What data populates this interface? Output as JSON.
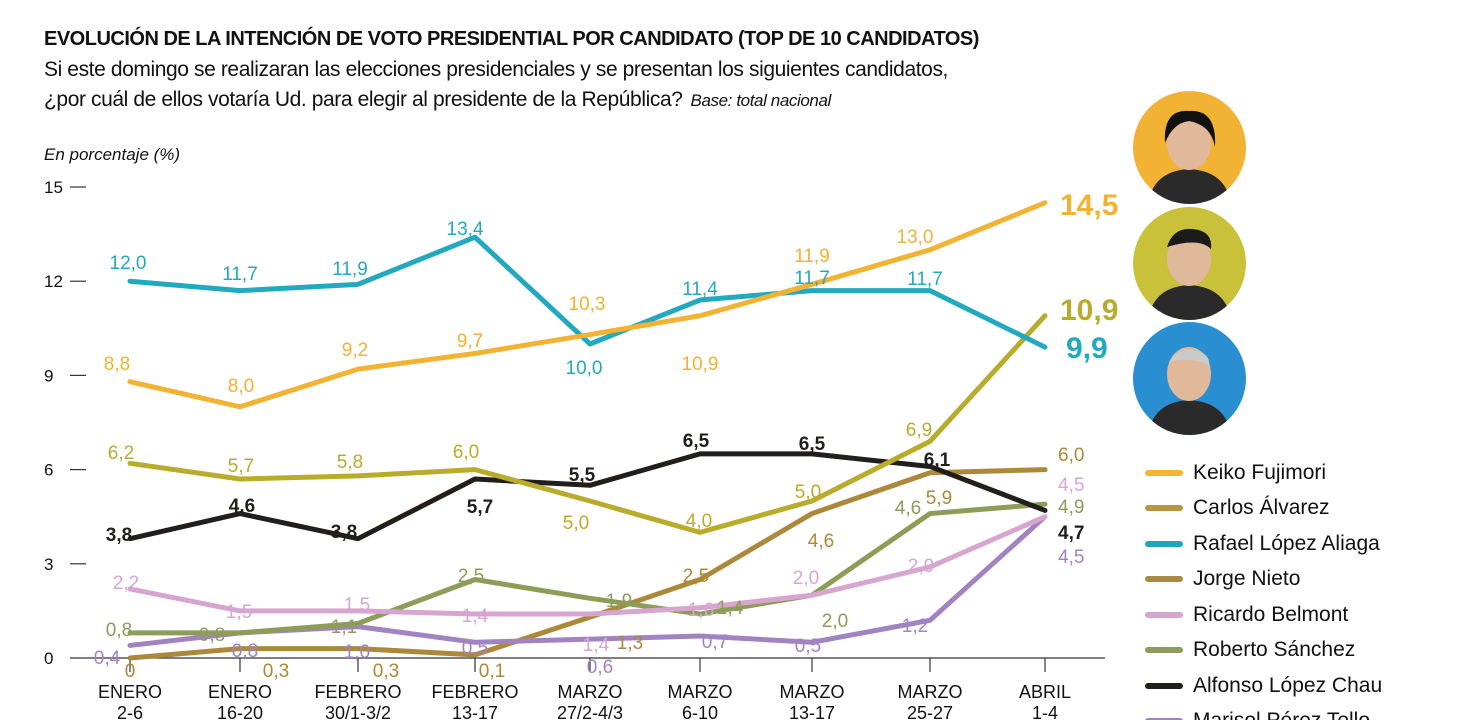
{
  "chart_data": {
    "type": "line",
    "title": "EVOLUCIÓN DE LA INTENCIÓN DE VOTO PRESIDENTIAL POR CANDIDATO (TOP DE 10 CANDIDATOS)",
    "subtitle_1": "Si este domingo se realizaran las elecciones presidenciales y se presentan los siguientes candidatos,",
    "subtitle_2": "¿por cuál de ellos votaría Ud. para elegir al presidente de la República?",
    "base_note": "Base: total nacional",
    "ylabel": "En porcentaje (%)",
    "ylim": [
      0,
      15
    ],
    "yticks": [
      "0",
      "3",
      "6",
      "9",
      "12",
      "15"
    ],
    "grid": false,
    "legend_position": "right",
    "categories": [
      [
        "ENERO",
        "2-6"
      ],
      [
        "ENERO",
        "16-20"
      ],
      [
        "FEBRERO",
        "30/1-3/2"
      ],
      [
        "FEBRERO",
        "13-17"
      ],
      [
        "MARZO",
        "27/2-4/3"
      ],
      [
        "MARZO",
        "6-10"
      ],
      [
        "MARZO",
        "13-17"
      ],
      [
        "MARZO",
        "25-27"
      ],
      [
        "ABRIL",
        "1-4"
      ]
    ],
    "series": [
      {
        "name": "Keiko Fujimori",
        "color": "#f2b233",
        "legend_color": "#f4b531",
        "values": [
          8.8,
          8.0,
          9.2,
          9.7,
          10.3,
          10.9,
          11.9,
          13.0,
          14.5
        ]
      },
      {
        "name": "Carlos Álvarez",
        "color": "#b9ab2c",
        "legend_color": "#b89540",
        "values": [
          6.2,
          5.7,
          5.8,
          6.0,
          5.0,
          4.0,
          5.0,
          6.9,
          10.9
        ]
      },
      {
        "name": "Rafael López Aliaga",
        "color": "#22a9bf",
        "legend_color": "#21a5bd",
        "values": [
          12.0,
          11.7,
          11.9,
          13.4,
          10.0,
          11.4,
          11.7,
          11.7,
          9.9
        ]
      },
      {
        "name": "Jorge Nieto",
        "color": "#ac883a",
        "legend_color": "#a88a45",
        "values": [
          0,
          0.3,
          0.3,
          0.1,
          1.3,
          2.5,
          4.6,
          5.9,
          6.0
        ]
      },
      {
        "name": "Ricardo Belmont",
        "color": "#d7a6d0",
        "legend_color": "#d4a6cf",
        "values": [
          2.2,
          1.5,
          1.5,
          1.4,
          1.4,
          1.6,
          2.0,
          2.9,
          4.5
        ]
      },
      {
        "name": "Roberto Sánchez",
        "color": "#8d9d58",
        "legend_color": "#8c9c5a",
        "values": [
          0.8,
          0.8,
          1.1,
          2.5,
          1.9,
          1.4,
          2.0,
          4.6,
          4.9
        ]
      },
      {
        "name": "Alfonso López Chau",
        "color": "#221e1b",
        "legend_color": "#231f1c",
        "values": [
          3.8,
          4.6,
          3.8,
          5.7,
          5.5,
          6.5,
          6.5,
          6.1,
          4.7
        ]
      },
      {
        "name": "Marisol Pérez Tello",
        "color": "#a283c2",
        "legend_color": "#a080c0",
        "values": [
          0.4,
          0.8,
          1.0,
          0.5,
          0.6,
          0.7,
          0.5,
          1.2,
          4.5
        ]
      }
    ]
  },
  "photos": [
    {
      "subject": "Keiko Fujimori",
      "bg": "#f2b233"
    },
    {
      "subject": "Carlos Álvarez",
      "bg": "#c9c13a"
    },
    {
      "subject": "Rafael López Aliaga",
      "bg": "#2a8fd0"
    }
  ]
}
